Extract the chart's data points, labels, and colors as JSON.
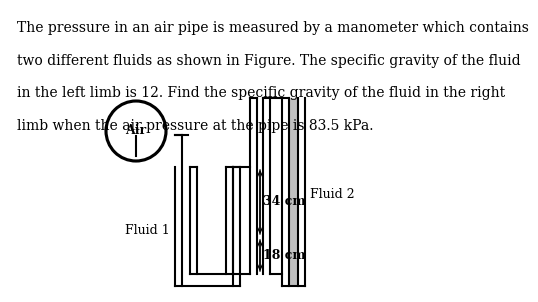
{
  "text_line1": "The pressure in an air pipe is measured by a manometer which contains",
  "text_line2": "two different fluids as shown in Figure. The specific gravity of the fluid",
  "text_line3": "in the left limb is 12. Find the specific gravity of the fluid in the right",
  "text_line4": "limb when the air pressure at the pipe is 83.5 kPa.",
  "label_air": "Air",
  "label_fluid1": "Fluid 1",
  "label_fluid2": "Fluid 2",
  "label_34cm": "34 cm",
  "label_18cm": "18 cm",
  "bg_color": "#ffffff",
  "tube_color": "#000000",
  "fluid2_fill": "#c0c0c0",
  "text_fontsize": 10.0,
  "diagram_fontsize": 9.0,
  "lw_tube": 1.5
}
